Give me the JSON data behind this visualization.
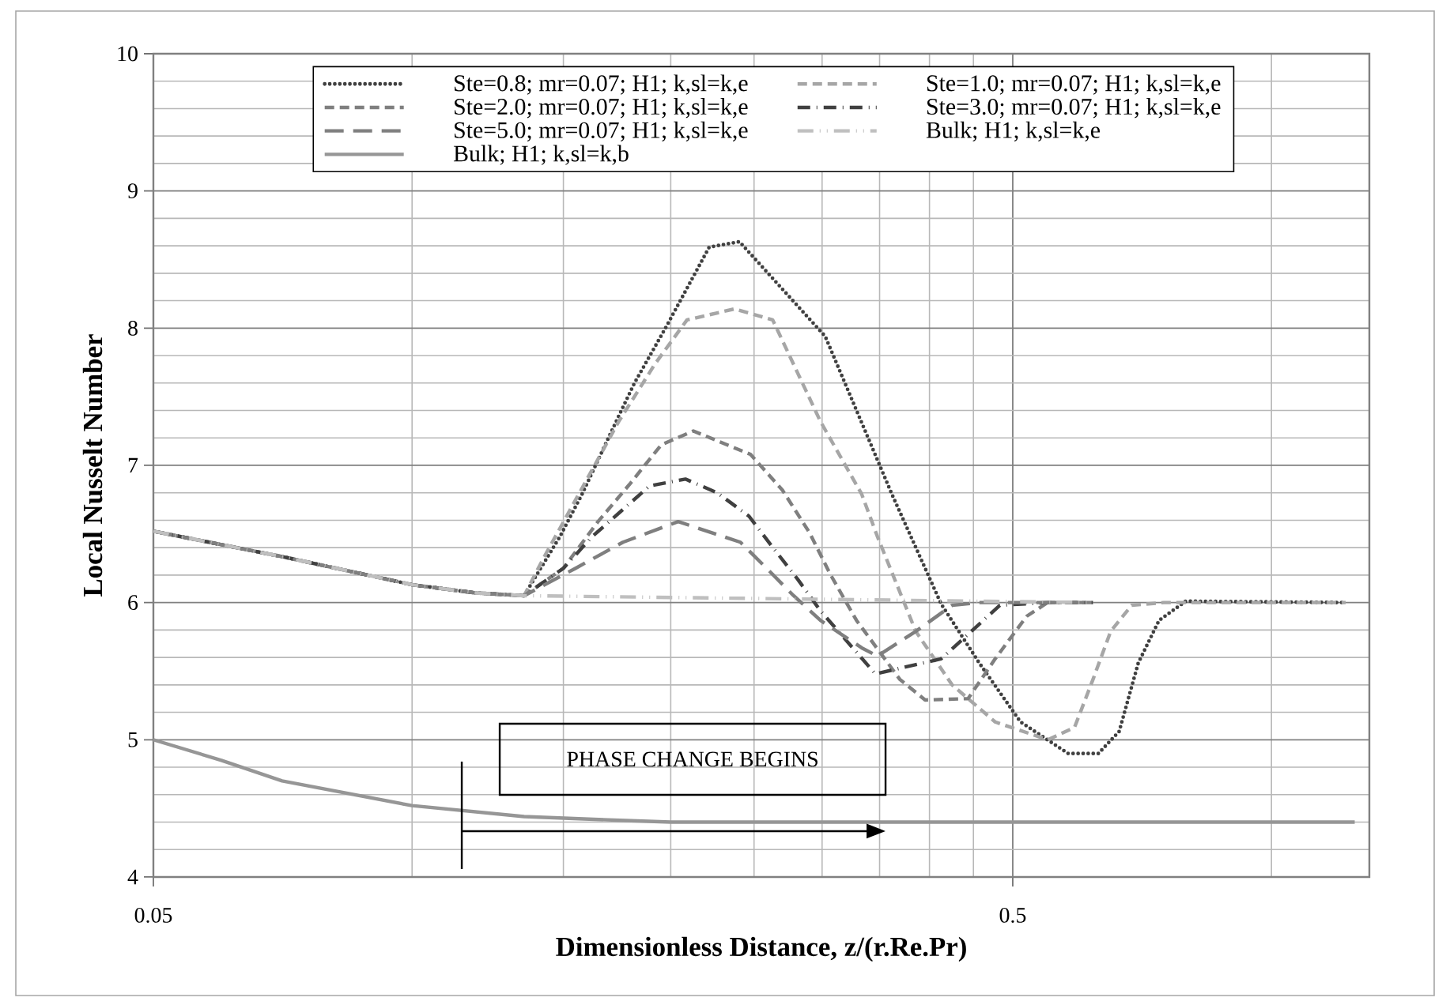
{
  "chart_data": {
    "type": "line",
    "xlabel": "Dimensionless Distance, z/(r.Re.Pr)",
    "ylabel": "Local Nusselt Number",
    "log": "x",
    "xlim": [
      0.05,
      1.3
    ],
    "ylim": [
      4,
      10
    ],
    "xticks": [
      0.05,
      {
        "value": 0.1,
        "label": null
      },
      {
        "value": 0.15,
        "label": null
      },
      {
        "value": 0.2,
        "label": null
      },
      {
        "value": 0.25,
        "label": null
      },
      {
        "value": 0.3,
        "label": null
      },
      {
        "value": 0.35,
        "label": null
      },
      {
        "value": 0.4,
        "label": null
      },
      {
        "value": 0.45,
        "label": null
      },
      0.5,
      {
        "value": 1.0,
        "label": null
      }
    ],
    "yticks": [
      4,
      {
        "value": 4.2,
        "label": null
      },
      {
        "value": 4.4,
        "label": null
      },
      {
        "value": 4.6,
        "label": null
      },
      {
        "value": 4.8,
        "label": null
      },
      5,
      {
        "value": 5.2,
        "label": null
      },
      {
        "value": 5.4,
        "label": null
      },
      {
        "value": 5.6,
        "label": null
      },
      {
        "value": 5.8,
        "label": null
      },
      6,
      {
        "value": 6.2,
        "label": null
      },
      {
        "value": 6.4,
        "label": null
      },
      {
        "value": 6.6,
        "label": null
      },
      {
        "value": 6.8,
        "label": null
      },
      7,
      {
        "value": 7.2,
        "label": null
      },
      {
        "value": 7.4,
        "label": null
      },
      {
        "value": 7.6,
        "label": null
      },
      {
        "value": 7.8,
        "label": null
      },
      8,
      {
        "value": 8.2,
        "label": null
      },
      {
        "value": 8.4,
        "label": null
      },
      {
        "value": 8.6,
        "label": null
      },
      {
        "value": 8.8,
        "label": null
      },
      9,
      {
        "value": 9.2,
        "label": null
      },
      {
        "value": 9.4,
        "label": null
      },
      {
        "value": 9.6,
        "label": null
      },
      {
        "value": 9.8,
        "label": null
      },
      10
    ],
    "grid": true,
    "legend": "top",
    "marker": "none",
    "series": [
      {
        "name": "Ste=0.8; mr=0.07; H1; k,sl=k,e",
        "color": "#404040",
        "line_style": "dotted",
        "x": [
          0.05,
          0.0712,
          0.1,
          0.1186,
          0.135,
          0.1486,
          0.1577,
          0.174,
          0.1815,
          0.1976,
          0.2217,
          0.2404,
          0.3025,
          0.3617,
          0.4127,
          0.457,
          0.5105,
          0.58,
          0.629,
          0.665,
          0.7,
          0.74,
          0.795,
          1.22
        ],
        "values": [
          6.52,
          6.33,
          6.13,
          6.07,
          6.05,
          6.48,
          6.79,
          7.36,
          7.6,
          8.01,
          8.59,
          8.63,
          7.94,
          6.79,
          5.99,
          5.56,
          5.13,
          4.9,
          4.9,
          5.06,
          5.56,
          5.87,
          6.01,
          6.0
        ]
      },
      {
        "name": "Ste=1.0; mr=0.07; H1; k,sl=k,e",
        "color": "#a6a6a6",
        "line_style": "dashed",
        "x": [
          0.05,
          0.0712,
          0.1,
          0.1186,
          0.135,
          0.1424,
          0.174,
          0.1918,
          0.2089,
          0.2373,
          0.2628,
          0.2987,
          0.3336,
          0.348,
          0.3856,
          0.425,
          0.477,
          0.549,
          0.59,
          0.62,
          0.65,
          0.6876,
          0.749,
          1.22
        ],
        "values": [
          6.52,
          6.33,
          6.13,
          6.07,
          6.05,
          6.33,
          7.32,
          7.74,
          8.06,
          8.14,
          8.06,
          7.32,
          6.79,
          6.48,
          5.79,
          5.4,
          5.13,
          5.0,
          5.09,
          5.44,
          5.79,
          5.98,
          6.0,
          6.0
        ]
      },
      {
        "name": "Ste=2.0; mr=0.07; H1; k,sl=k,e",
        "color": "#7f7f7f",
        "line_style": "dashed",
        "x": [
          0.05,
          0.0712,
          0.1,
          0.1186,
          0.135,
          0.15,
          0.1646,
          0.179,
          0.195,
          0.2125,
          0.2476,
          0.2697,
          0.29,
          0.3064,
          0.329,
          0.3695,
          0.3955,
          0.4436,
          0.477,
          0.519,
          0.549,
          0.62
        ],
        "values": [
          6.52,
          6.33,
          6.13,
          6.07,
          6.05,
          6.25,
          6.59,
          6.86,
          7.15,
          7.25,
          7.08,
          6.82,
          6.51,
          6.21,
          5.87,
          5.44,
          5.29,
          5.3,
          5.59,
          5.9,
          6.0,
          6.0
        ]
      },
      {
        "name": "Ste=3.0; mr=0.07; H1; k,sl=k,e",
        "color": "#404040",
        "line_style": "dashdot",
        "x": [
          0.05,
          0.0712,
          0.1,
          0.1186,
          0.135,
          0.15,
          0.162,
          0.189,
          0.208,
          0.2265,
          0.2466,
          0.263,
          0.281,
          0.2987,
          0.346,
          0.4127,
          0.483,
          0.549,
          0.62
        ],
        "values": [
          6.52,
          6.33,
          6.13,
          6.07,
          6.05,
          6.25,
          6.48,
          6.85,
          6.9,
          6.8,
          6.63,
          6.4,
          6.17,
          5.94,
          5.48,
          5.59,
          5.98,
          6.0,
          6.0
        ]
      },
      {
        "name": "Ste=5.0; mr=0.07; H1; k,sl=k,e",
        "color": "#7f7f7f",
        "line_style": "longdash",
        "x": [
          0.05,
          0.0712,
          0.1,
          0.1186,
          0.135,
          0.155,
          0.176,
          0.204,
          0.241,
          0.2585,
          0.278,
          0.2987,
          0.3336,
          0.348,
          0.3856,
          0.425,
          0.457,
          0.62
        ],
        "values": [
          6.52,
          6.33,
          6.13,
          6.07,
          6.05,
          6.25,
          6.44,
          6.59,
          6.44,
          6.25,
          6.05,
          5.87,
          5.67,
          5.61,
          5.79,
          5.98,
          6.0,
          6.0
        ]
      },
      {
        "name": "Bulk; H1; k,sl=k,e",
        "color": "#bfbfbf",
        "line_style": "dashdotdot",
        "x": [
          0.05,
          0.0712,
          0.1,
          0.1186,
          0.135,
          0.62
        ],
        "values": [
          6.52,
          6.33,
          6.13,
          6.07,
          6.05,
          6.0
        ]
      },
      {
        "name": "Bulk; H1; k,sl=k,b",
        "color": "#969696",
        "line_style": "solid",
        "x": [
          0.05,
          0.06,
          0.0706,
          0.1,
          0.135,
          0.18,
          0.2,
          1.25
        ],
        "values": [
          5.0,
          4.85,
          4.7,
          4.52,
          4.44,
          4.41,
          4.4,
          4.4
        ]
      }
    ],
    "annotations": [
      "PHASE CHANGE BEGINS"
    ]
  }
}
